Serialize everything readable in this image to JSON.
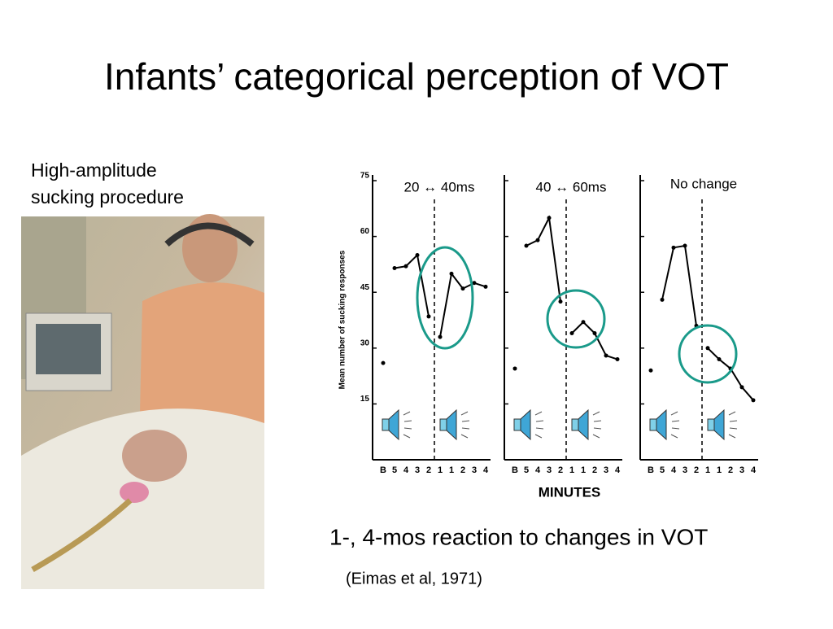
{
  "slide": {
    "title": "Infants’ categorical perception of VOT",
    "caption_lines": [
      "High-amplitude",
      "sucking procedure"
    ],
    "subtitle": "1-, 4-mos reaction to changes in VOT",
    "citation": "(Eimas et al, 1971)"
  },
  "chart_data": [
    {
      "type": "line",
      "title": "20 ↔ 40ms",
      "ylabel": "Mean number of sucking responses",
      "categories": [
        "B",
        "5",
        "4",
        "3",
        "2",
        "1",
        "1",
        "2",
        "3",
        "4"
      ],
      "values": [
        26,
        51.5,
        52,
        55,
        38.5,
        33,
        50,
        46,
        47.5,
        46.5
      ],
      "ylim": [
        0,
        75
      ],
      "yticks": [
        15,
        30,
        45,
        60,
        75
      ],
      "color": "#000000"
    },
    {
      "type": "line",
      "title": "40 ↔ 60ms",
      "xlabel": "MINUTES",
      "categories": [
        "B",
        "5",
        "4",
        "3",
        "2",
        "1",
        "1",
        "2",
        "3",
        "4"
      ],
      "values": [
        24.5,
        57.5,
        59,
        65,
        42.5,
        34,
        37,
        34,
        28,
        27
      ],
      "ylim": [
        0,
        75
      ],
      "yticks": [
        15,
        30,
        45,
        60,
        75
      ],
      "color": "#000000"
    },
    {
      "type": "line",
      "title": "No change",
      "categories": [
        "B",
        "5",
        "4",
        "3",
        "2",
        "1",
        "1",
        "2",
        "3",
        "4"
      ],
      "values": [
        24,
        43,
        57,
        57.5,
        36,
        30,
        27,
        24.5,
        19.5,
        16
      ],
      "ylim": [
        0,
        75
      ],
      "yticks": [
        15,
        30,
        45,
        60,
        75
      ],
      "color": "#000000"
    }
  ]
}
